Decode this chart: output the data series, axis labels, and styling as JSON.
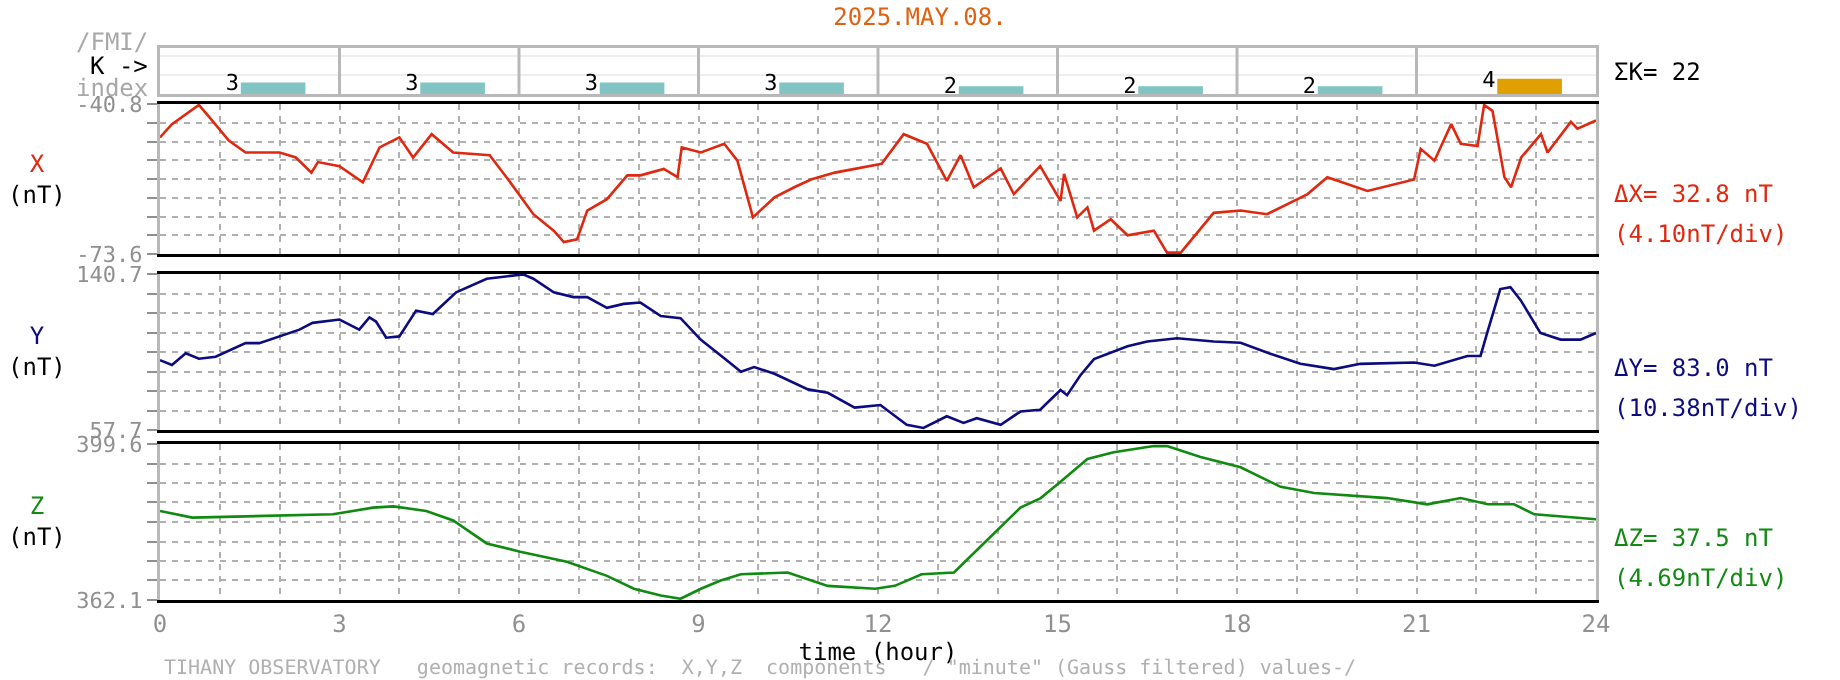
{
  "chart_data": [
    {
      "type": "bar",
      "title": "2025.MAY.08.",
      "categories": [
        null,
        null,
        null,
        null,
        null,
        null,
        null,
        null
      ],
      "values": [
        3,
        3,
        3,
        3,
        2,
        2,
        2,
        4
      ],
      "colors": [
        "#80c4c4",
        "#80c4c4",
        "#80c4c4",
        "#80c4c4",
        "#80c4c4",
        "#80c4c4",
        "#80c4c4",
        "#e0a000"
      ],
      "data_labels": true,
      "tick_labels": false,
      "annotations": [
        "/FMI/",
        "K ->",
        "index",
        "ΣK= 22"
      ]
    },
    {
      "type": "line",
      "ylabel": "X (nT)",
      "xlim": [
        0,
        24
      ],
      "ylim": [
        -73.6,
        -40.8
      ],
      "tick_labels": "y",
      "grid": true,
      "xticks": [
        0,
        {
          "value": 1,
          "label": null
        },
        {
          "value": 2,
          "label": null
        },
        3,
        {
          "value": 4,
          "label": null
        },
        {
          "value": 5,
          "label": null
        },
        6,
        {
          "value": 7,
          "label": null
        },
        {
          "value": 8,
          "label": null
        },
        9,
        {
          "value": 10,
          "label": null
        },
        {
          "value": 11,
          "label": null
        },
        12,
        {
          "value": 13,
          "label": null
        },
        {
          "value": 14,
          "label": null
        },
        15,
        {
          "value": 16,
          "label": null
        },
        {
          "value": 17,
          "label": null
        },
        18,
        {
          "value": 19,
          "label": null
        },
        {
          "value": 20,
          "label": null
        },
        21,
        {
          "value": 22,
          "label": null
        },
        {
          "value": 23,
          "label": null
        },
        24
      ],
      "yticks": [
        -73.6,
        {
          "value": -69.5,
          "label": null
        },
        {
          "value": -65.4,
          "label": null
        },
        {
          "value": -61.3,
          "label": null
        },
        {
          "value": -57.2,
          "label": null
        },
        {
          "value": -53.1,
          "label": null
        },
        {
          "value": -49.0,
          "label": null
        },
        {
          "value": -44.9,
          "label": null
        },
        -40.8
      ],
      "annotations": [
        "ΔX= 32.8 nT",
        "(4.10nT/div)"
      ],
      "series": [
        {
          "color": "#e02810",
          "x": [
            0,
            0.2,
            0.65,
            0.87,
            1.15,
            1.43,
            2.0,
            2.27,
            2.53,
            2.64,
            3.0,
            3.39,
            3.67,
            4.0,
            4.23,
            4.54,
            4.9,
            5.51,
            5.79,
            6.24,
            6.58,
            6.75,
            6.97,
            7.14,
            7.47,
            7.81,
            8.03,
            8.42,
            8.65,
            8.72,
            9.04,
            9.43,
            9.65,
            9.91,
            10.27,
            10.6,
            10.88,
            11.28,
            12.06,
            12.43,
            12.82,
            13.15,
            13.38,
            13.6,
            14.05,
            14.27,
            14.71,
            15.05,
            15.11,
            15.33,
            15.5,
            15.61,
            15.89,
            16.17,
            16.61,
            16.83,
            17.06,
            17.61,
            18.06,
            18.5,
            19.18,
            19.51,
            20.18,
            20.96,
            21.07,
            21.3,
            21.58,
            21.74,
            22.02,
            22.13,
            22.27,
            22.47,
            22.58,
            22.75,
            23.08,
            23.19,
            23.58,
            23.69,
            24
          ],
          "values": [
            -48.1,
            -45.2,
            -41.0,
            -44.4,
            -48.8,
            -51.4,
            -51.4,
            -52.5,
            -55.8,
            -53.5,
            -54.4,
            -57.9,
            -50.3,
            -48.1,
            -52.5,
            -47.4,
            -51.4,
            -52.0,
            -56.8,
            -64.9,
            -68.5,
            -71.0,
            -70.4,
            -64.1,
            -61.6,
            -56.4,
            -56.4,
            -55.0,
            -56.8,
            -50.3,
            -51.4,
            -49.5,
            -53.2,
            -65.6,
            -61.2,
            -59.0,
            -57.3,
            -55.8,
            -53.9,
            -47.4,
            -49.5,
            -57.6,
            -52.0,
            -59.0,
            -54.9,
            -60.5,
            -54.4,
            -62.0,
            -56.1,
            -65.6,
            -63.4,
            -68.5,
            -66.0,
            -69.5,
            -68.5,
            -73.3,
            -73.3,
            -64.6,
            -64.1,
            -64.9,
            -60.5,
            -56.8,
            -59.8,
            -57.3,
            -50.6,
            -53.2,
            -45.2,
            -49.5,
            -50.0,
            -41.0,
            -42.3,
            -56.8,
            -59.0,
            -52.5,
            -47.4,
            -51.4,
            -44.7,
            -46.2,
            -44.4
          ]
        }
      ]
    },
    {
      "type": "line",
      "ylabel": "Y (nT)",
      "xlim": [
        0,
        24
      ],
      "ylim": [
        57.7,
        140.7
      ],
      "tick_labels": "y",
      "grid": true,
      "xticks": [
        0,
        {
          "value": 1,
          "label": null
        },
        {
          "value": 2,
          "label": null
        },
        3,
        {
          "value": 4,
          "label": null
        },
        {
          "value": 5,
          "label": null
        },
        6,
        {
          "value": 7,
          "label": null
        },
        {
          "value": 8,
          "label": null
        },
        9,
        {
          "value": 10,
          "label": null
        },
        {
          "value": 11,
          "label": null
        },
        12,
        {
          "value": 13,
          "label": null
        },
        {
          "value": 14,
          "label": null
        },
        15,
        {
          "value": 16,
          "label": null
        },
        {
          "value": 17,
          "label": null
        },
        18,
        {
          "value": 19,
          "label": null
        },
        {
          "value": 20,
          "label": null
        },
        21,
        {
          "value": 22,
          "label": null
        },
        {
          "value": 23,
          "label": null
        },
        24
      ],
      "yticks": [
        57.7,
        {
          "value": 68.08,
          "label": null
        },
        {
          "value": 78.45,
          "label": null
        },
        {
          "value": 88.83,
          "label": null
        },
        {
          "value": 99.2,
          "label": null
        },
        {
          "value": 109.58,
          "label": null
        },
        {
          "value": 119.95,
          "label": null
        },
        {
          "value": 130.33,
          "label": null
        },
        140.7
      ],
      "annotations": [
        "ΔY= 83.0 nT",
        "(10.38nT/div)"
      ],
      "series": [
        {
          "color": "#0c0c80",
          "x": [
            0,
            0.2,
            0.43,
            0.65,
            0.93,
            1.43,
            1.66,
            2.33,
            2.55,
            3.0,
            3.33,
            3.5,
            3.61,
            3.78,
            4.0,
            4.28,
            4.56,
            4.95,
            5.46,
            6.07,
            6.24,
            6.58,
            6.91,
            7.14,
            7.47,
            7.75,
            8.03,
            8.37,
            8.7,
            9.04,
            9.43,
            9.71,
            9.93,
            10.27,
            10.83,
            11.16,
            11.61,
            12.04,
            12.48,
            12.76,
            13.15,
            13.43,
            13.65,
            14.05,
            14.38,
            14.71,
            15.05,
            15.16,
            15.38,
            15.61,
            16.17,
            16.5,
            17.0,
            17.61,
            18.06,
            18.5,
            19.06,
            19.62,
            20.06,
            20.96,
            21.3,
            21.85,
            22.07,
            22.18,
            22.4,
            22.57,
            22.74,
            23.07,
            23.41,
            23.74,
            24
          ],
          "values": [
            94.9,
            92.3,
            98.5,
            95.6,
            96.7,
            103.9,
            103.9,
            111.1,
            114.7,
            116.5,
            111.1,
            117.6,
            115.4,
            106.8,
            107.5,
            121.2,
            119.4,
            131.0,
            138.2,
            140.5,
            138.2,
            131.0,
            128.4,
            128.4,
            122.7,
            124.8,
            125.5,
            118.3,
            117.2,
            105.7,
            95.9,
            88.7,
            91.2,
            87.6,
            79.3,
            77.5,
            69.6,
            71.0,
            60.5,
            58.8,
            65.0,
            61.5,
            64.0,
            60.5,
            67.5,
            68.5,
            79.0,
            76.2,
            86.7,
            95.4,
            102.3,
            104.8,
            106.5,
            104.8,
            104.1,
            98.9,
            92.9,
            90.1,
            92.9,
            93.6,
            91.9,
            97.1,
            97.1,
            109.3,
            132.7,
            133.7,
            126.8,
            109.3,
            105.8,
            105.8,
            109.3
          ]
        }
      ]
    },
    {
      "type": "line",
      "ylabel": "Z (nT)",
      "xlabel": "time (hour)",
      "xlim": [
        0,
        24
      ],
      "ylim": [
        362.1,
        399.6
      ],
      "grid": true,
      "xticks": [
        0,
        {
          "value": 1,
          "label": null
        },
        {
          "value": 2,
          "label": null
        },
        3,
        {
          "value": 4,
          "label": null
        },
        {
          "value": 5,
          "label": null
        },
        6,
        {
          "value": 7,
          "label": null
        },
        {
          "value": 8,
          "label": null
        },
        9,
        {
          "value": 10,
          "label": null
        },
        {
          "value": 11,
          "label": null
        },
        12,
        {
          "value": 13,
          "label": null
        },
        {
          "value": 14,
          "label": null
        },
        15,
        {
          "value": 16,
          "label": null
        },
        {
          "value": 17,
          "label": null
        },
        18,
        {
          "value": 19,
          "label": null
        },
        {
          "value": 20,
          "label": null
        },
        21,
        {
          "value": 22,
          "label": null
        },
        {
          "value": 23,
          "label": null
        },
        24
      ],
      "yticks": [
        362.1,
        {
          "value": 366.79,
          "label": null
        },
        {
          "value": 371.48,
          "label": null
        },
        {
          "value": 376.16,
          "label": null
        },
        {
          "value": 380.85,
          "label": null
        },
        {
          "value": 385.54,
          "label": null
        },
        {
          "value": 390.23,
          "label": null
        },
        {
          "value": 394.91,
          "label": null
        },
        399.6
      ],
      "annotations": [
        "ΔZ= 37.5 nT",
        "(4.69nT/div)",
        "TIHANY OBSERVATORY   geomagnetic records:  X,Y,Z  components   / \"minute\" (Gauss filtered) values-/"
      ],
      "series": [
        {
          "color": "#108a10",
          "x": [
            0,
            0.54,
            2.89,
            3.56,
            3.9,
            4.45,
            4.9,
            5.46,
            6.02,
            6.8,
            7.47,
            7.92,
            8.37,
            8.7,
            9.04,
            9.37,
            9.71,
            10.49,
            11.16,
            11.95,
            12.28,
            12.73,
            13.27,
            13.71,
            14.38,
            14.72,
            15.05,
            15.5,
            15.94,
            16.61,
            16.83,
            17.39,
            18.06,
            18.73,
            19.29,
            20.51,
            21.18,
            21.74,
            22.19,
            22.63,
            22.97,
            24
          ],
          "values": [
            383.5,
            381.9,
            382.7,
            384.3,
            384.6,
            383.5,
            381.2,
            375.7,
            373.7,
            371.3,
            367.9,
            364.8,
            363.2,
            362.4,
            364.8,
            366.8,
            368.3,
            368.7,
            365.5,
            364.8,
            365.5,
            368.3,
            368.7,
            374.9,
            384.3,
            386.6,
            390.5,
            396.0,
            397.6,
            399.1,
            399.1,
            396.5,
            394.0,
            389.3,
            387.8,
            386.6,
            385.1,
            386.6,
            385.1,
            385.1,
            382.7,
            381.5
          ]
        }
      ]
    }
  ]
}
